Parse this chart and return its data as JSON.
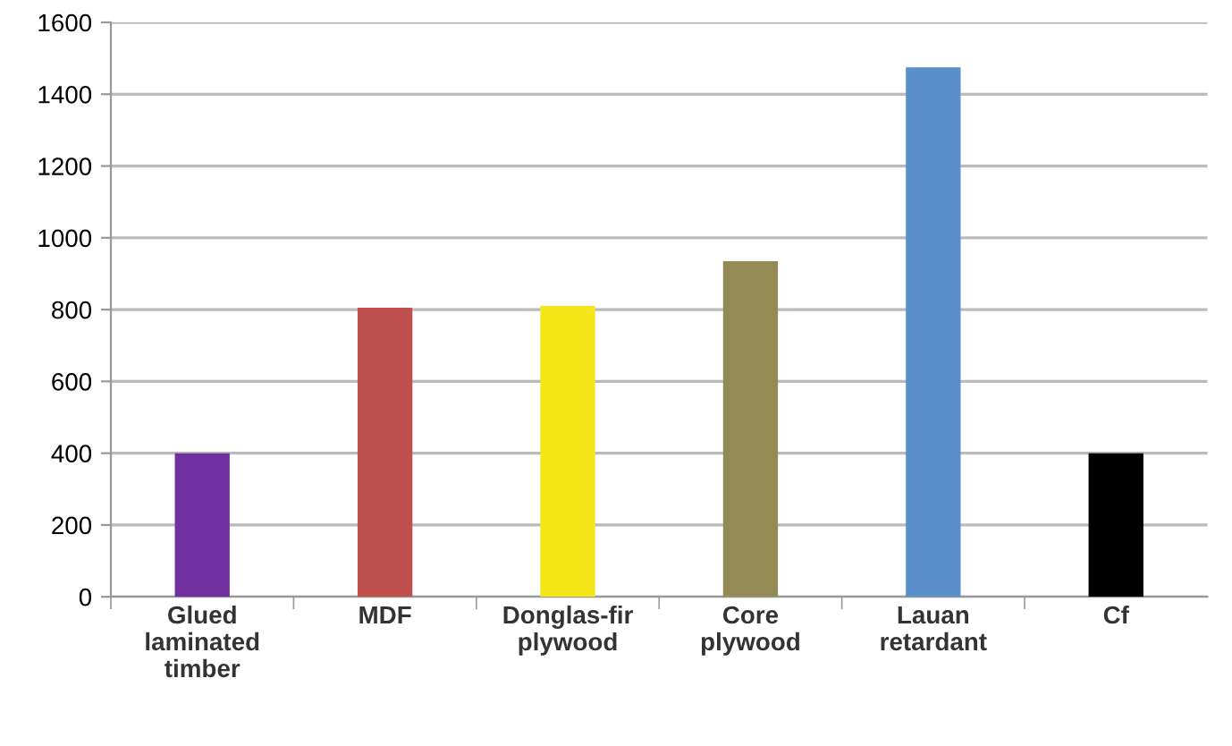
{
  "chart_data": {
    "type": "bar",
    "categories": [
      "Glued\nlaminated\ntimber",
      "MDF",
      "Donglas-fir\nplywood",
      "Core\nplywood",
      "Lauan\nretardant",
      "Cf"
    ],
    "values": [
      400,
      805,
      810,
      935,
      1475,
      400
    ],
    "colors": [
      "#7030a0",
      "#c0504d",
      "#f5e61a",
      "#948a54",
      "#5b8fcb",
      "#000000"
    ],
    "ylim": [
      0,
      1600
    ],
    "yticks": [
      0,
      200,
      400,
      600,
      800,
      1000,
      1200,
      1400,
      1600
    ],
    "grid": "y",
    "legend": false
  }
}
